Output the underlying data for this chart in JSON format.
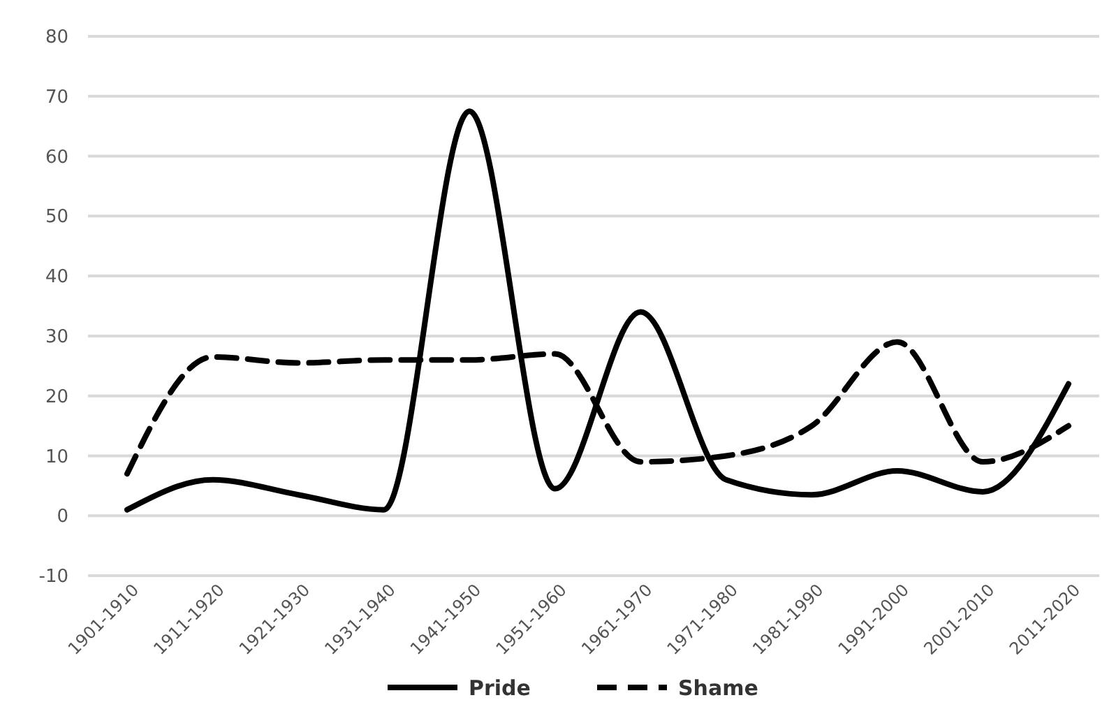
{
  "chart_data": {
    "type": "line",
    "categories": [
      "1901-1910",
      "1911-1920",
      "1921-1930",
      "1931-1940",
      "1941-1950",
      "1951-1960",
      "1961-1970",
      "1971-1980",
      "1981-1990",
      "1991-2000",
      "2001-2010",
      "2011-2020"
    ],
    "series": [
      {
        "name": "Pride",
        "color": "#000000",
        "line_style": "solid",
        "values": [
          1,
          6,
          3.5,
          1,
          67.5,
          4.5,
          34,
          6,
          3.5,
          7.5,
          4,
          22
        ]
      },
      {
        "name": "Shame",
        "color": "#000000",
        "line_style": "dashed",
        "values": [
          7,
          26.5,
          25.5,
          26,
          26,
          27,
          9,
          10,
          15,
          29,
          9,
          15
        ]
      }
    ],
    "ylim": [
      -10,
      80
    ],
    "yticks": [
      -10,
      0,
      10,
      20,
      30,
      40,
      50,
      60,
      70,
      80
    ],
    "grid": "y",
    "legend": "bottom",
    "marker": "none"
  }
}
